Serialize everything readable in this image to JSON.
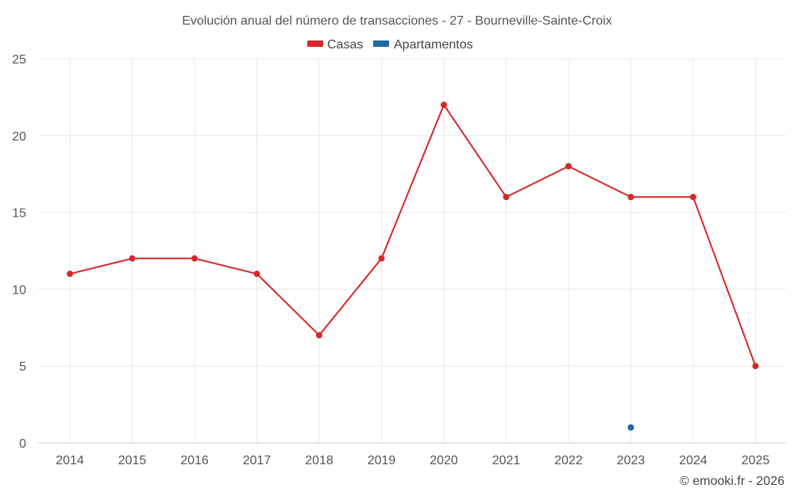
{
  "chart_data": {
    "type": "line",
    "title": "Evolución anual del número de transacciones - 27 - Bourneville-Sainte-Croix",
    "categories": [
      "2014",
      "2015",
      "2016",
      "2017",
      "2018",
      "2019",
      "2020",
      "2021",
      "2022",
      "2023",
      "2024",
      "2025"
    ],
    "series": [
      {
        "name": "Casas",
        "color": "#d62728",
        "values": [
          11,
          12,
          12,
          11,
          7,
          12,
          22,
          16,
          18,
          16,
          16,
          5
        ]
      },
      {
        "name": "Apartamentos",
        "color": "#1f6aa5",
        "values": [
          null,
          null,
          null,
          null,
          null,
          null,
          null,
          null,
          null,
          1,
          null,
          null
        ]
      }
    ],
    "ylim": [
      0,
      25
    ],
    "yticks": [
      0,
      5,
      10,
      15,
      20,
      25
    ],
    "grid": true,
    "legend": "top-center",
    "xlabel": "",
    "ylabel": ""
  },
  "credit": "© emooki.fr - 2026"
}
